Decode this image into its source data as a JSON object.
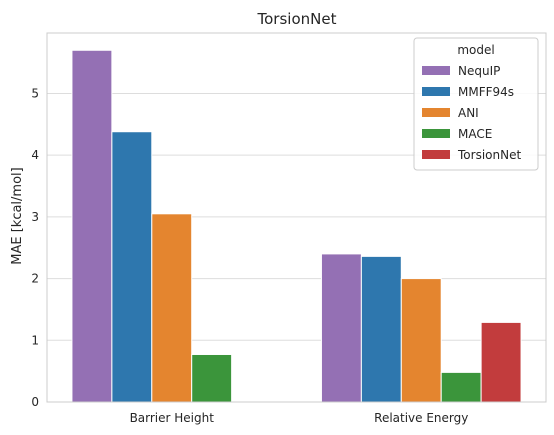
{
  "chart_data": {
    "type": "bar",
    "title": "TorsionNet",
    "xlabel": "",
    "ylabel": "MAE [kcal/mol]",
    "categories": [
      "Barrier Height",
      "Relative Energy"
    ],
    "ylim": [
      0,
      5.98
    ],
    "yticks": [
      "0",
      "1",
      "2",
      "3",
      "4",
      "5"
    ],
    "grid": true,
    "legend": {
      "title": "model",
      "placement": "top-right"
    },
    "series": [
      {
        "name": "NequIP",
        "color": "#9470b4",
        "values": [
          5.7,
          2.4
        ]
      },
      {
        "name": "MMFF94s",
        "color": "#2e77ae",
        "values": [
          4.38,
          2.36
        ]
      },
      {
        "name": "ANI",
        "color": "#e4852f",
        "values": [
          3.05,
          2.0
        ]
      },
      {
        "name": "MACE",
        "color": "#3b953b",
        "values": [
          0.77,
          0.48
        ]
      },
      {
        "name": "TorsionNet",
        "color": "#c23c3d",
        "values": [
          null,
          1.29
        ]
      }
    ]
  }
}
